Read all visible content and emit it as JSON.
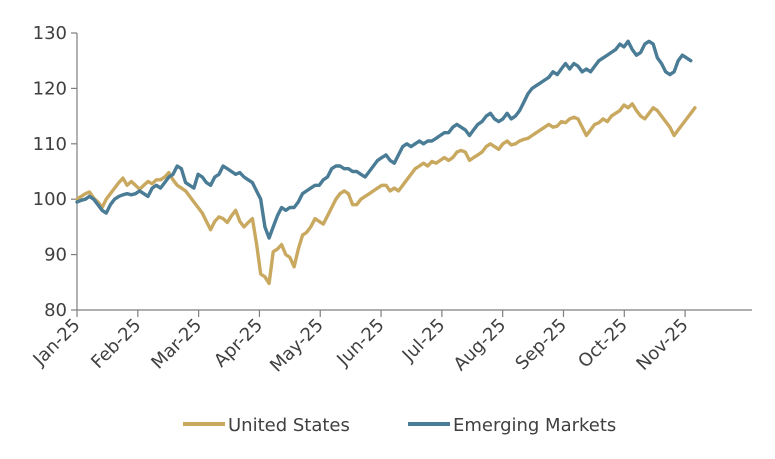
{
  "chart_data": {
    "type": "line",
    "title": "",
    "xlabel": "",
    "ylabel": "",
    "ylim": [
      80,
      130
    ],
    "yticks": [
      80,
      90,
      100,
      110,
      120,
      130
    ],
    "x_tick_labels": [
      "Jan-25",
      "Feb-25",
      "Mar-25",
      "Apr-25",
      "May-25",
      "Jun-25",
      "Jul-25",
      "Aug-25",
      "Sep-25",
      "Oct-25",
      "Nov-25"
    ],
    "x_range_weeks": [
      0,
      48.5
    ],
    "grid": false,
    "legend_position": "bottom",
    "series": [
      {
        "name": "United States",
        "color": "#C9A860",
        "points": [
          [
            0,
            100
          ],
          [
            0.3,
            100.5
          ],
          [
            0.6,
            101
          ],
          [
            0.9,
            101.3
          ],
          [
            1.2,
            100.2
          ],
          [
            1.5,
            99.5
          ],
          [
            1.8,
            98.5
          ],
          [
            2.1,
            100
          ],
          [
            2.4,
            101
          ],
          [
            2.7,
            102
          ],
          [
            3,
            103
          ],
          [
            3.3,
            103.8
          ],
          [
            3.6,
            102.5
          ],
          [
            3.9,
            103.2
          ],
          [
            4.2,
            102.5
          ],
          [
            4.5,
            101.8
          ],
          [
            4.8,
            102.5
          ],
          [
            5.1,
            103.2
          ],
          [
            5.4,
            102.8
          ],
          [
            5.7,
            103.5
          ],
          [
            6,
            103.5
          ],
          [
            6.3,
            104
          ],
          [
            6.6,
            104.8
          ],
          [
            6.9,
            103.5
          ],
          [
            7.2,
            102.5
          ],
          [
            7.5,
            102
          ],
          [
            7.8,
            101.5
          ],
          [
            8.1,
            100.5
          ],
          [
            8.4,
            99.5
          ],
          [
            8.7,
            98.5
          ],
          [
            9,
            97.5
          ],
          [
            9.3,
            96
          ],
          [
            9.6,
            94.5
          ],
          [
            9.9,
            96
          ],
          [
            10.2,
            96.8
          ],
          [
            10.5,
            96.5
          ],
          [
            10.8,
            95.8
          ],
          [
            11.1,
            97
          ],
          [
            11.4,
            98
          ],
          [
            11.7,
            96
          ],
          [
            12,
            95
          ],
          [
            12.3,
            95.8
          ],
          [
            12.6,
            96.5
          ],
          [
            12.9,
            92
          ],
          [
            13.2,
            86.5
          ],
          [
            13.5,
            86
          ],
          [
            13.8,
            84.8
          ],
          [
            14.1,
            90.5
          ],
          [
            14.4,
            91
          ],
          [
            14.7,
            91.8
          ],
          [
            15,
            90
          ],
          [
            15.3,
            89.5
          ],
          [
            15.6,
            87.8
          ],
          [
            15.9,
            91
          ],
          [
            16.2,
            93.5
          ],
          [
            16.5,
            94
          ],
          [
            16.8,
            95
          ],
          [
            17.1,
            96.5
          ],
          [
            17.4,
            96
          ],
          [
            17.7,
            95.5
          ],
          [
            18,
            97
          ],
          [
            18.3,
            98.5
          ],
          [
            18.6,
            100
          ],
          [
            18.9,
            101
          ],
          [
            19.2,
            101.5
          ],
          [
            19.5,
            101
          ],
          [
            19.8,
            99
          ],
          [
            20.1,
            99
          ],
          [
            20.4,
            100
          ],
          [
            20.7,
            100.5
          ],
          [
            21,
            101
          ],
          [
            21.3,
            101.5
          ],
          [
            21.6,
            102
          ],
          [
            21.9,
            102.5
          ],
          [
            22.2,
            102.5
          ],
          [
            22.5,
            101.5
          ],
          [
            22.8,
            102
          ],
          [
            23.1,
            101.5
          ],
          [
            23.4,
            102.5
          ],
          [
            23.7,
            103.5
          ],
          [
            24,
            104.5
          ],
          [
            24.3,
            105.5
          ],
          [
            24.6,
            106
          ],
          [
            24.9,
            106.5
          ],
          [
            25.2,
            106
          ],
          [
            25.5,
            106.8
          ],
          [
            25.8,
            106.5
          ],
          [
            26.1,
            107
          ],
          [
            26.4,
            107.5
          ],
          [
            26.7,
            107
          ],
          [
            27,
            107.5
          ],
          [
            27.3,
            108.5
          ],
          [
            27.6,
            108.8
          ],
          [
            27.9,
            108.5
          ],
          [
            28.2,
            107
          ],
          [
            28.5,
            107.5
          ],
          [
            28.8,
            108
          ],
          [
            29.1,
            108.5
          ],
          [
            29.4,
            109.5
          ],
          [
            29.7,
            110
          ],
          [
            30,
            109.5
          ],
          [
            30.3,
            109
          ],
          [
            30.6,
            110
          ],
          [
            30.9,
            110.5
          ],
          [
            31.2,
            109.8
          ],
          [
            31.5,
            110
          ],
          [
            31.8,
            110.5
          ],
          [
            32.1,
            110.8
          ],
          [
            32.4,
            111
          ],
          [
            32.7,
            111.5
          ],
          [
            33,
            112
          ],
          [
            33.3,
            112.5
          ],
          [
            33.6,
            113
          ],
          [
            33.9,
            113.5
          ],
          [
            34.2,
            113
          ],
          [
            34.5,
            113.2
          ],
          [
            34.8,
            114
          ],
          [
            35.1,
            113.8
          ],
          [
            35.4,
            114.5
          ],
          [
            35.7,
            114.8
          ],
          [
            36,
            114.5
          ],
          [
            36.3,
            113
          ],
          [
            36.6,
            111.5
          ],
          [
            36.9,
            112.5
          ],
          [
            37.2,
            113.5
          ],
          [
            37.5,
            113.8
          ],
          [
            37.8,
            114.5
          ],
          [
            38.1,
            114
          ],
          [
            38.4,
            115
          ],
          [
            38.7,
            115.5
          ],
          [
            39,
            116
          ],
          [
            39.3,
            117
          ],
          [
            39.6,
            116.5
          ],
          [
            39.9,
            117.2
          ],
          [
            40.2,
            116
          ],
          [
            40.5,
            115
          ],
          [
            40.8,
            114.5
          ],
          [
            41.1,
            115.5
          ],
          [
            41.4,
            116.5
          ],
          [
            41.7,
            116
          ],
          [
            42,
            115
          ],
          [
            42.3,
            114
          ],
          [
            42.6,
            113
          ],
          [
            42.9,
            111.5
          ],
          [
            43.2,
            112.5
          ],
          [
            43.5,
            113.5
          ],
          [
            43.8,
            114.5
          ],
          [
            44.1,
            115.5
          ],
          [
            44.4,
            116.5
          ]
        ]
      },
      {
        "name": "Emerging Markets",
        "color": "#4A7C96",
        "points": [
          [
            0,
            99.5
          ],
          [
            0.3,
            99.8
          ],
          [
            0.6,
            100
          ],
          [
            0.9,
            100.5
          ],
          [
            1.2,
            100
          ],
          [
            1.5,
            99
          ],
          [
            1.8,
            98
          ],
          [
            2.1,
            97.5
          ],
          [
            2.4,
            99
          ],
          [
            2.7,
            100
          ],
          [
            3,
            100.5
          ],
          [
            3.3,
            100.8
          ],
          [
            3.6,
            101
          ],
          [
            3.9,
            100.8
          ],
          [
            4.2,
            101
          ],
          [
            4.5,
            101.5
          ],
          [
            4.8,
            101
          ],
          [
            5.1,
            100.5
          ],
          [
            5.4,
            102
          ],
          [
            5.7,
            102.5
          ],
          [
            6,
            102
          ],
          [
            6.3,
            103
          ],
          [
            6.6,
            104
          ],
          [
            6.9,
            104.5
          ],
          [
            7.2,
            106
          ],
          [
            7.5,
            105.5
          ],
          [
            7.8,
            103
          ],
          [
            8.1,
            102.5
          ],
          [
            8.4,
            102
          ],
          [
            8.7,
            104.5
          ],
          [
            9,
            104
          ],
          [
            9.3,
            103
          ],
          [
            9.6,
            102.5
          ],
          [
            9.9,
            104
          ],
          [
            10.2,
            104.5
          ],
          [
            10.5,
            106
          ],
          [
            10.8,
            105.5
          ],
          [
            11.1,
            105
          ],
          [
            11.4,
            104.5
          ],
          [
            11.7,
            104.8
          ],
          [
            12,
            104
          ],
          [
            12.3,
            103.5
          ],
          [
            12.6,
            103
          ],
          [
            12.9,
            101.5
          ],
          [
            13.2,
            100
          ],
          [
            13.5,
            95
          ],
          [
            13.8,
            93
          ],
          [
            14.1,
            95
          ],
          [
            14.4,
            97
          ],
          [
            14.7,
            98.5
          ],
          [
            15,
            98
          ],
          [
            15.3,
            98.5
          ],
          [
            15.6,
            98.5
          ],
          [
            15.9,
            99.5
          ],
          [
            16.2,
            101
          ],
          [
            16.5,
            101.5
          ],
          [
            16.8,
            102
          ],
          [
            17.1,
            102.5
          ],
          [
            17.4,
            102.5
          ],
          [
            17.7,
            103.5
          ],
          [
            18,
            104
          ],
          [
            18.3,
            105.5
          ],
          [
            18.6,
            106
          ],
          [
            18.9,
            106
          ],
          [
            19.2,
            105.5
          ],
          [
            19.5,
            105.5
          ],
          [
            19.8,
            105
          ],
          [
            20.1,
            105
          ],
          [
            20.4,
            104.5
          ],
          [
            20.7,
            104
          ],
          [
            21,
            105
          ],
          [
            21.3,
            106
          ],
          [
            21.6,
            107
          ],
          [
            21.9,
            107.5
          ],
          [
            22.2,
            108
          ],
          [
            22.5,
            107
          ],
          [
            22.8,
            106.5
          ],
          [
            23.1,
            108
          ],
          [
            23.4,
            109.5
          ],
          [
            23.7,
            110
          ],
          [
            24,
            109.5
          ],
          [
            24.3,
            110
          ],
          [
            24.6,
            110.5
          ],
          [
            24.9,
            110
          ],
          [
            25.2,
            110.5
          ],
          [
            25.5,
            110.5
          ],
          [
            25.8,
            111
          ],
          [
            26.1,
            111.5
          ],
          [
            26.4,
            112
          ],
          [
            26.7,
            112
          ],
          [
            27,
            113
          ],
          [
            27.3,
            113.5
          ],
          [
            27.6,
            113
          ],
          [
            27.9,
            112.5
          ],
          [
            28.2,
            111.5
          ],
          [
            28.5,
            112.5
          ],
          [
            28.8,
            113.5
          ],
          [
            29.1,
            114
          ],
          [
            29.4,
            115
          ],
          [
            29.7,
            115.5
          ],
          [
            30,
            114.5
          ],
          [
            30.3,
            114
          ],
          [
            30.6,
            114.5
          ],
          [
            30.9,
            115.5
          ],
          [
            31.2,
            114.5
          ],
          [
            31.5,
            115
          ],
          [
            31.8,
            116
          ],
          [
            32.1,
            117.5
          ],
          [
            32.4,
            119
          ],
          [
            32.7,
            120
          ],
          [
            33,
            120.5
          ],
          [
            33.3,
            121
          ],
          [
            33.6,
            121.5
          ],
          [
            33.9,
            122
          ],
          [
            34.2,
            123
          ],
          [
            34.5,
            122.5
          ],
          [
            34.8,
            123.5
          ],
          [
            35.1,
            124.5
          ],
          [
            35.4,
            123.5
          ],
          [
            35.7,
            124.5
          ],
          [
            36,
            124
          ],
          [
            36.3,
            123
          ],
          [
            36.6,
            123.5
          ],
          [
            36.9,
            123
          ],
          [
            37.2,
            124
          ],
          [
            37.5,
            125
          ],
          [
            37.8,
            125.5
          ],
          [
            38.1,
            126
          ],
          [
            38.4,
            126.5
          ],
          [
            38.7,
            127
          ],
          [
            39,
            128
          ],
          [
            39.3,
            127.5
          ],
          [
            39.6,
            128.5
          ],
          [
            39.9,
            127
          ],
          [
            40.2,
            126
          ],
          [
            40.5,
            126.5
          ],
          [
            40.8,
            128
          ],
          [
            41.1,
            128.5
          ],
          [
            41.4,
            128
          ],
          [
            41.7,
            125.5
          ],
          [
            42,
            124.5
          ],
          [
            42.3,
            123
          ],
          [
            42.6,
            122.5
          ],
          [
            42.9,
            123
          ],
          [
            43.2,
            125
          ],
          [
            43.5,
            126
          ],
          [
            43.8,
            125.5
          ],
          [
            44.1,
            125
          ]
        ]
      }
    ]
  }
}
